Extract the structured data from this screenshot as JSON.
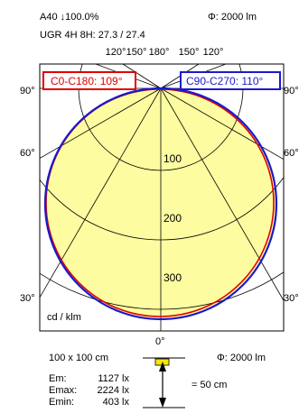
{
  "header": {
    "luminaire_code": "A40 ↓100.0%",
    "flux": "Φ: 2000 lm",
    "ugr": "UGR 4H 8H: 27.3 / 27.4"
  },
  "top_angles": [
    "120°",
    "150°",
    "180°",
    "150°",
    "120°"
  ],
  "side_angles": {
    "left_90": "90°",
    "left_60": "60°",
    "left_30": "30°",
    "right_90": "90°",
    "right_60": "60°",
    "right_30": "30°",
    "bottom_0": "0°"
  },
  "legend": {
    "c0": {
      "label": "C0-C180: 109°",
      "color": "#e00000"
    },
    "c90": {
      "label": "C90-C270: 110°",
      "color": "#1a1acc"
    }
  },
  "unit_label": "cd / klm",
  "chart_data": {
    "type": "polar",
    "rings": [
      100,
      200,
      300
    ],
    "fill_color": "#fdfca0",
    "series": [
      {
        "name": "C0-C180: 109°",
        "color": "#e00000"
      },
      {
        "name": "C90-C270: 110°",
        "color": "#1a1acc"
      }
    ]
  },
  "illuminance": {
    "area": "100 x 100 cm",
    "flux": "Φ: 2000 lm",
    "distance": "= 50 cm",
    "rows": [
      {
        "label": "Em:",
        "value": "1127 lx"
      },
      {
        "label": "Emax:",
        "value": "2224 lx"
      },
      {
        "label": "Emin:",
        "value": "403 lx"
      }
    ],
    "lamp_color": "#f5e600"
  }
}
